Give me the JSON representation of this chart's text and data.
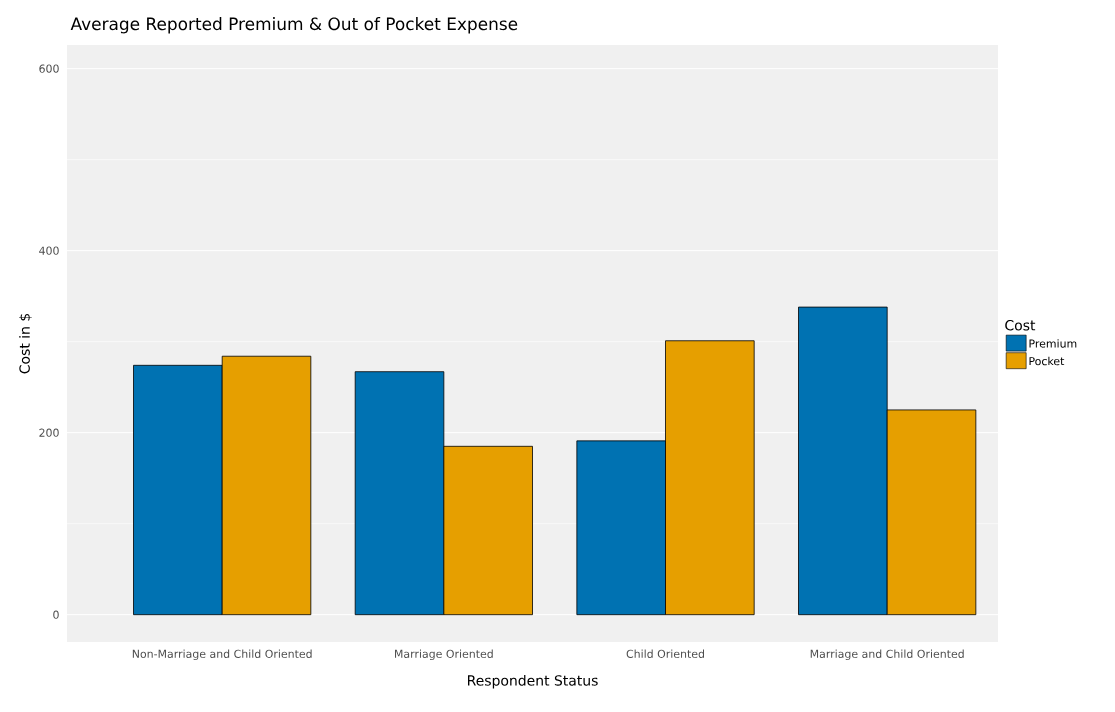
{
  "chart_data": {
    "type": "bar",
    "title": "Average Reported Premium & Out of Pocket Expense",
    "xlabel": "Respondent Status",
    "ylabel": "Cost in $",
    "legend_title": "Cost",
    "categories": [
      "Non-Marriage and Child Oriented",
      "Marriage Oriented",
      "Child Oriented",
      "Marriage and Child Oriented"
    ],
    "series": [
      {
        "name": "Premium",
        "color": "#0072b2",
        "values": [
          274,
          267,
          191,
          338
        ]
      },
      {
        "name": "Pocket",
        "color": "#e69f00",
        "values": [
          284,
          185,
          301,
          225
        ]
      }
    ],
    "ylim": [
      -30,
      626
    ],
    "yticks": [
      0,
      200,
      400,
      600
    ],
    "grid": "y",
    "legend": "right"
  }
}
